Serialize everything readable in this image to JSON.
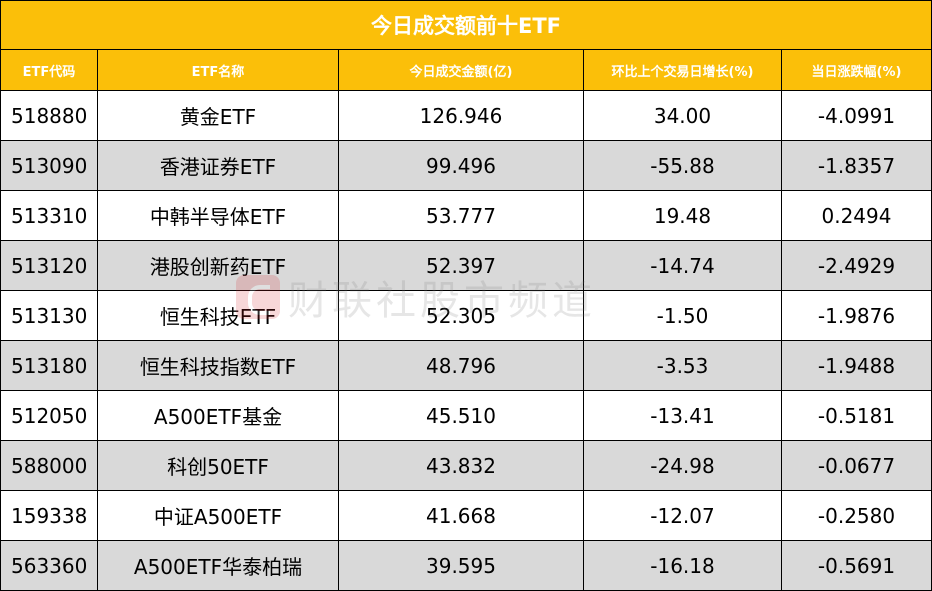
{
  "table": {
    "title": "今日成交额前十ETF",
    "headers": [
      "ETF代码",
      "ETF名称",
      "今日成交金额(亿)",
      "环比上个交易日增长(%)",
      "当日涨跌幅(%)"
    ],
    "rows": [
      {
        "code": "518880",
        "name": "黄金ETF",
        "turnover": "126.946",
        "growth": "34.00",
        "change": "-4.0991"
      },
      {
        "code": "513090",
        "name": "香港证券ETF",
        "turnover": "99.496",
        "growth": "-55.88",
        "change": "-1.8357"
      },
      {
        "code": "513310",
        "name": "中韩半导体ETF",
        "turnover": "53.777",
        "growth": "19.48",
        "change": "0.2494"
      },
      {
        "code": "513120",
        "name": "港股创新药ETF",
        "turnover": "52.397",
        "growth": "-14.74",
        "change": "-2.4929"
      },
      {
        "code": "513130",
        "name": "恒生科技ETF",
        "turnover": "52.305",
        "growth": "-1.50",
        "change": "-1.9876"
      },
      {
        "code": "513180",
        "name": "恒生科技指数ETF",
        "turnover": "48.796",
        "growth": "-3.53",
        "change": "-1.9488"
      },
      {
        "code": "512050",
        "name": "A500ETF基金",
        "turnover": "45.510",
        "growth": "-13.41",
        "change": "-0.5181"
      },
      {
        "code": "588000",
        "name": "科创50ETF",
        "turnover": "43.832",
        "growth": "-24.98",
        "change": "-0.0677"
      },
      {
        "code": "159338",
        "name": "中证A500ETF",
        "turnover": "41.668",
        "growth": "-12.07",
        "change": "-0.2580"
      },
      {
        "code": "563360",
        "name": "A500ETF华泰柏瑞",
        "turnover": "39.595",
        "growth": "-16.18",
        "change": "-0.5691"
      }
    ]
  },
  "watermark": {
    "text": "财联社股市频道",
    "logo_icon": "cailianshe-logo-icon"
  },
  "colors": {
    "header_bg": "#fbbf09",
    "header_text": "#ffffff",
    "stripe_bg": "#d9d9d9",
    "row_bg": "#ffffff",
    "watermark_logo": "#d8262b"
  }
}
